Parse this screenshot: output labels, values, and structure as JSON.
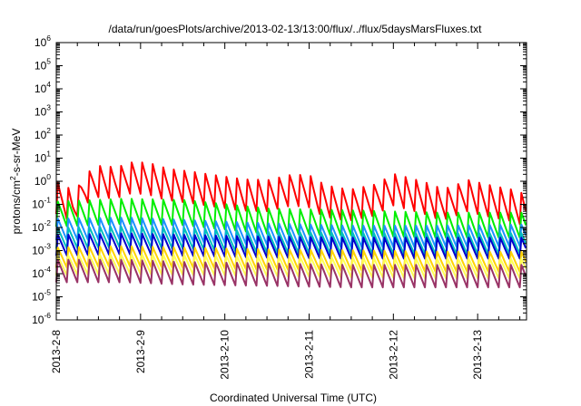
{
  "chart_data": {
    "type": "line",
    "title": "/data/run/goesPlots/archive/2013-02-13/13:00/flux/../flux/5daysMarsFluxes.txt",
    "xlabel": "Coordinated Universal Time (UTC)",
    "ylabel_parts": {
      "base": "protons/cm",
      "sup": "2",
      "rest": "-s-sr-MeV"
    },
    "y_scale": "log",
    "ylim_exponents": [
      -6,
      6
    ],
    "y_ticks": [
      {
        "base": "10",
        "exp": "6"
      },
      {
        "base": "10",
        "exp": "5"
      },
      {
        "base": "10",
        "exp": "4"
      },
      {
        "base": "10",
        "exp": "3"
      },
      {
        "base": "10",
        "exp": "2"
      },
      {
        "base": "10",
        "exp": "1"
      },
      {
        "base": "10",
        "exp": "0"
      },
      {
        "base": "10",
        "exp": "-1"
      },
      {
        "base": "10",
        "exp": "-2"
      },
      {
        "base": "10",
        "exp": "-3"
      },
      {
        "base": "10",
        "exp": "-4"
      },
      {
        "base": "10",
        "exp": "-5"
      },
      {
        "base": "10",
        "exp": "-6"
      }
    ],
    "xlim_days": [
      0,
      5.58
    ],
    "x_ticks": [
      "2013-2-8",
      "2013-2-9",
      "2013-2-10",
      "2013-2-11",
      "2013-2-12",
      "2013-2-13"
    ],
    "grid": false,
    "legend": "none",
    "series": [
      {
        "color": "#ff0000",
        "values": [
          [
            0,
            0.32
          ],
          [
            0.1,
            0.22
          ],
          [
            0.2,
            0.13
          ],
          [
            0.35,
            0.9
          ],
          [
            0.5,
            1.7
          ],
          [
            0.7,
            1.5
          ],
          [
            0.9,
            2.6
          ],
          [
            1.1,
            2.2
          ],
          [
            1.3,
            1.3
          ],
          [
            1.6,
            0.95
          ],
          [
            1.9,
            0.65
          ],
          [
            2.2,
            0.45
          ],
          [
            2.5,
            0.42
          ],
          [
            2.8,
            0.75
          ],
          [
            3.0,
            0.62
          ],
          [
            3.1,
            0.35
          ],
          [
            3.3,
            0.19
          ],
          [
            3.5,
            0.17
          ],
          [
            3.75,
            0.26
          ],
          [
            3.9,
            0.5
          ],
          [
            4.0,
            0.75
          ],
          [
            4.2,
            0.48
          ],
          [
            4.4,
            0.3
          ],
          [
            4.55,
            0.18
          ],
          [
            4.65,
            0.2
          ],
          [
            4.8,
            0.33
          ],
          [
            4.9,
            0.45
          ],
          [
            5.0,
            0.32
          ],
          [
            5.2,
            0.22
          ],
          [
            5.4,
            0.16
          ],
          [
            5.58,
            0.09
          ]
        ],
        "amp_up": 2.7,
        "dip": 0.12
      },
      {
        "color": "#00ee00",
        "values": [
          [
            0,
            0.06
          ],
          [
            0.8,
            0.08
          ],
          [
            1.5,
            0.07
          ],
          [
            2.5,
            0.03
          ],
          [
            3.5,
            0.025
          ],
          [
            4.5,
            0.02
          ],
          [
            5.58,
            0.02
          ]
        ],
        "amp_up": 2.2,
        "dip": 0.18
      },
      {
        "color": "#1e90ff",
        "values": [
          [
            0,
            0.008
          ],
          [
            0.8,
            0.009
          ],
          [
            1.5,
            0.007
          ],
          [
            2.5,
            0.005
          ],
          [
            3.5,
            0.004
          ],
          [
            4.5,
            0.004
          ],
          [
            5.58,
            0.0045
          ]
        ],
        "amp_up": 3.0,
        "dip": 0.35
      },
      {
        "color": "#00bfbf",
        "values": [
          [
            0,
            0.003
          ],
          [
            0.8,
            0.0035
          ],
          [
            1.5,
            0.003
          ],
          [
            2.5,
            0.002
          ],
          [
            3.5,
            0.0018
          ],
          [
            4.5,
            0.0017
          ],
          [
            5.58,
            0.0018
          ]
        ],
        "amp_up": 3.2,
        "dip": 0.4
      },
      {
        "color": "#0000cd",
        "values": [
          [
            0,
            0.0012
          ],
          [
            0.8,
            0.0014
          ],
          [
            1.5,
            0.0012
          ],
          [
            2.5,
            0.001
          ],
          [
            3.5,
            0.0009
          ],
          [
            4.5,
            0.0009
          ],
          [
            5.58,
            0.0009
          ]
        ],
        "amp_up": 4.0,
        "dip": 0.5
      },
      {
        "color": "#ffd400",
        "values": [
          [
            0,
            0.0003
          ],
          [
            0.8,
            0.00035
          ],
          [
            1.5,
            0.0003
          ],
          [
            2.5,
            0.00025
          ],
          [
            3.5,
            0.00023
          ],
          [
            4.5,
            0.0002
          ],
          [
            5.58,
            0.0002
          ]
        ],
        "amp_up": 4.5,
        "dip": 0.6
      },
      {
        "color": "#ffff55",
        "values": [
          [
            0,
            0.00012
          ],
          [
            0.8,
            0.00014
          ],
          [
            1.5,
            0.00013
          ],
          [
            2.5,
            0.00011
          ],
          [
            3.5,
            0.0001
          ],
          [
            4.5,
            9e-05
          ],
          [
            5.58,
            9e-05
          ]
        ],
        "amp_up": 5.0,
        "dip": 0.7
      },
      {
        "color": "#993366",
        "values": [
          [
            0,
            5e-05
          ],
          [
            0.8,
            5e-05
          ],
          [
            1.5,
            4e-05
          ],
          [
            2.5,
            3.5e-05
          ],
          [
            3.5,
            3e-05
          ],
          [
            4.5,
            3e-05
          ],
          [
            5.58,
            3e-05
          ]
        ],
        "amp_up": 8.0,
        "dip": 0.85
      }
    ],
    "cycles_per_day": 8
  }
}
